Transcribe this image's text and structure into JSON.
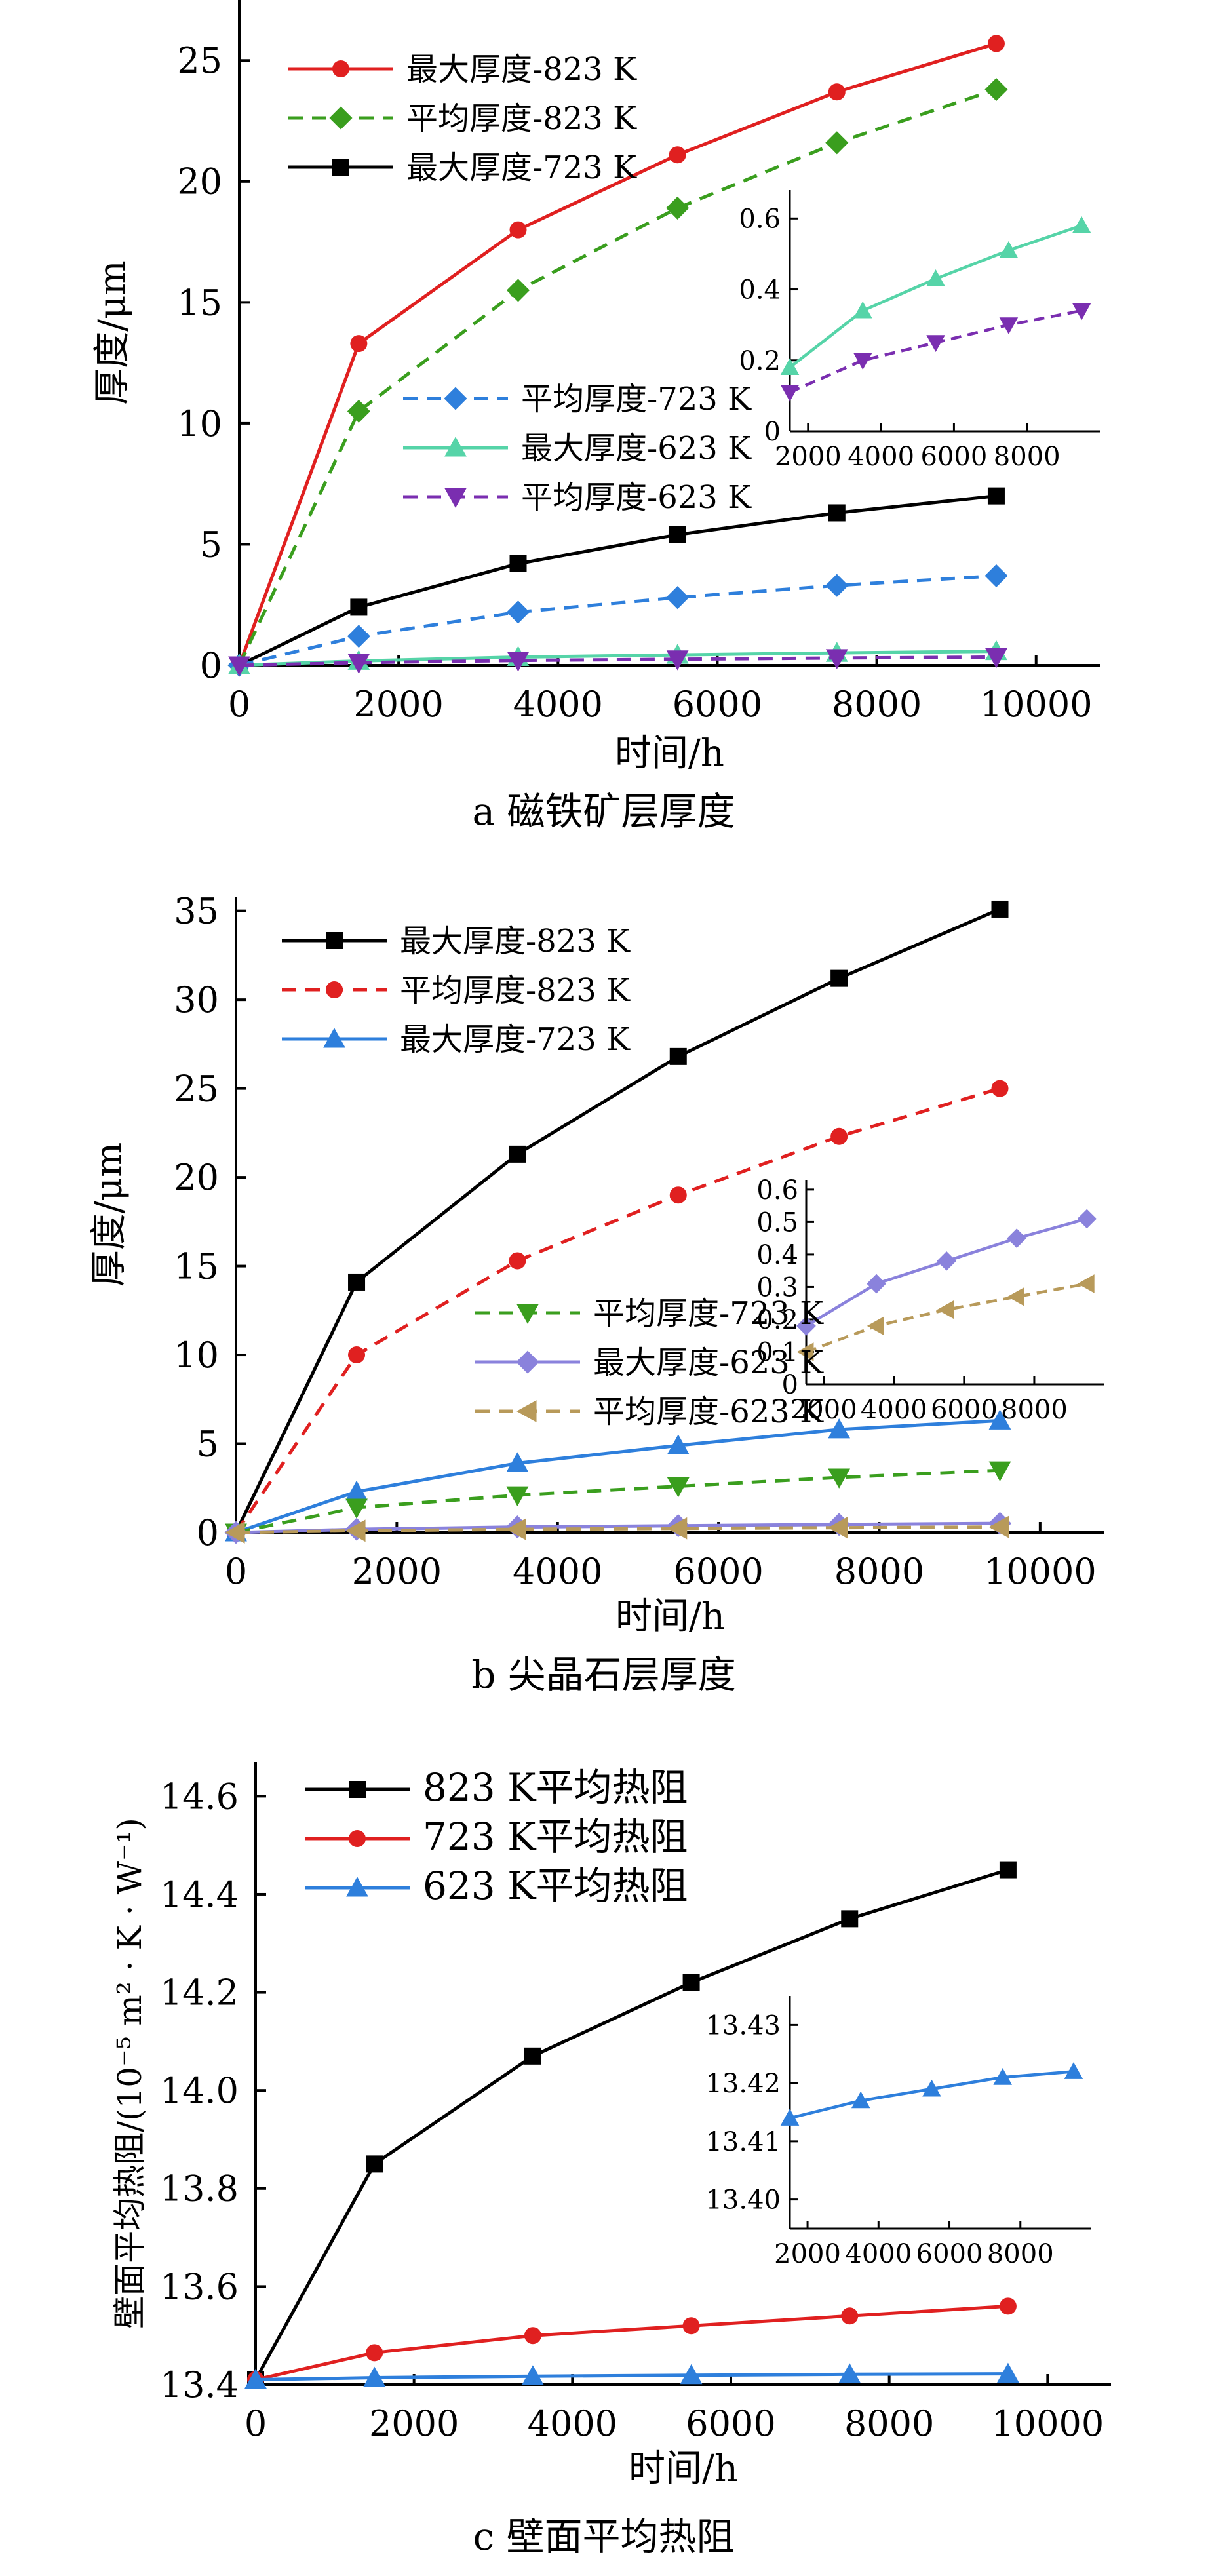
{
  "chart_data": [
    {
      "type": "line",
      "caption": "a  磁铁矿层厚度",
      "xlabel": "时间/h",
      "ylabel": "厚度/μm",
      "xlim": [
        0,
        10800
      ],
      "ylim": [
        0,
        27.5
      ],
      "xticks": [
        0,
        2000,
        4000,
        6000,
        8000,
        10000
      ],
      "yticks": [
        0,
        5,
        10,
        15,
        20,
        25
      ],
      "series": [
        {
          "name": "最大厚度-823 K",
          "color": "#e02020",
          "marker": "circle",
          "dash": "solid",
          "x": [
            0,
            1500,
            3500,
            5500,
            7500,
            9500
          ],
          "y": [
            0,
            13.3,
            18.0,
            21.1,
            23.7,
            25.7
          ]
        },
        {
          "name": "平均厚度-823 K",
          "color": "#3a9e1e",
          "marker": "diamond",
          "dash": "dashed",
          "x": [
            0,
            1500,
            3500,
            5500,
            7500,
            9500
          ],
          "y": [
            0,
            10.5,
            15.5,
            18.9,
            21.6,
            23.8
          ]
        },
        {
          "name": "最大厚度-723 K",
          "color": "#000000",
          "marker": "square",
          "dash": "solid",
          "x": [
            0,
            1500,
            3500,
            5500,
            7500,
            9500
          ],
          "y": [
            0,
            2.4,
            4.2,
            5.4,
            6.3,
            7.0
          ]
        },
        {
          "name": "平均厚度-723 K",
          "color": "#2e7fdc",
          "marker": "diamond",
          "dash": "dashed",
          "x": [
            0,
            1500,
            3500,
            5500,
            7500,
            9500
          ],
          "y": [
            0,
            1.2,
            2.2,
            2.8,
            3.3,
            3.7
          ]
        },
        {
          "name": "最大厚度-623 K",
          "color": "#56d4a8",
          "marker": "triangle-up",
          "dash": "solid",
          "x": [
            0,
            1500,
            3500,
            5500,
            7500,
            9500
          ],
          "y": [
            0,
            0.18,
            0.34,
            0.43,
            0.51,
            0.58
          ]
        },
        {
          "name": "平均厚度-623 K",
          "color": "#7a2eb0",
          "marker": "triangle-down",
          "dash": "dashed",
          "x": [
            0,
            1500,
            3500,
            5500,
            7500,
            9500
          ],
          "y": [
            0,
            0.11,
            0.2,
            0.25,
            0.3,
            0.34
          ]
        }
      ],
      "inset": {
        "xlim": [
          1500,
          10000
        ],
        "ylim": [
          0,
          0.68
        ],
        "xticks": [
          2000,
          4000,
          6000,
          8000
        ],
        "yticks": [
          0,
          0.2,
          0.4,
          0.6
        ],
        "ytick_labels": [
          "0",
          "0.2",
          "0.4",
          "0.6"
        ],
        "series": [
          {
            "name": "最大厚度-623 K",
            "color": "#56d4a8",
            "marker": "triangle-up",
            "dash": "solid",
            "x": [
              1500,
              3500,
              5500,
              7500,
              9500
            ],
            "y": [
              0.18,
              0.34,
              0.43,
              0.51,
              0.58
            ]
          },
          {
            "name": "平均厚度-623 K",
            "color": "#7a2eb0",
            "marker": "triangle-down",
            "dash": "dashed",
            "x": [
              1500,
              3500,
              5500,
              7500,
              9500
            ],
            "y": [
              0.11,
              0.2,
              0.25,
              0.3,
              0.34
            ]
          }
        ]
      }
    },
    {
      "type": "line",
      "caption": "b  尖晶石层厚度",
      "xlabel": "时间/h",
      "ylabel": "厚度/μm",
      "xlim": [
        0,
        10800
      ],
      "ylim": [
        0,
        35.8
      ],
      "xticks": [
        0,
        2000,
        4000,
        6000,
        8000,
        10000
      ],
      "yticks": [
        0,
        5,
        10,
        15,
        20,
        25,
        30,
        35
      ],
      "series": [
        {
          "name": "最大厚度-823 K",
          "color": "#000000",
          "marker": "square",
          "dash": "solid",
          "x": [
            0,
            1500,
            3500,
            5500,
            7500,
            9500
          ],
          "y": [
            0,
            14.1,
            21.3,
            26.8,
            31.2,
            35.1
          ]
        },
        {
          "name": "平均厚度-823 K",
          "color": "#e02020",
          "marker": "circle",
          "dash": "dashed",
          "x": [
            0,
            1500,
            3500,
            5500,
            7500,
            9500
          ],
          "y": [
            0,
            10.0,
            15.3,
            19.0,
            22.3,
            25.0
          ]
        },
        {
          "name": "最大厚度-723 K",
          "color": "#2e7fdc",
          "marker": "triangle-up",
          "dash": "solid",
          "x": [
            0,
            1500,
            3500,
            5500,
            7500,
            9500
          ],
          "y": [
            0,
            2.3,
            3.9,
            4.9,
            5.8,
            6.3
          ]
        },
        {
          "name": "平均厚度-723 K",
          "color": "#3a9e1e",
          "marker": "triangle-down",
          "dash": "dashed",
          "x": [
            0,
            1500,
            3500,
            5500,
            7500,
            9500
          ],
          "y": [
            0,
            1.4,
            2.1,
            2.6,
            3.1,
            3.5
          ]
        },
        {
          "name": "最大厚度-623 K",
          "color": "#8a82dc",
          "marker": "diamond",
          "dash": "solid",
          "x": [
            0,
            1500,
            3500,
            5500,
            7500,
            9500
          ],
          "y": [
            0,
            0.18,
            0.31,
            0.38,
            0.45,
            0.51
          ]
        },
        {
          "name": "平均厚度-623 K",
          "color": "#b89a5a",
          "marker": "triangle-left",
          "dash": "dashed",
          "x": [
            0,
            1500,
            3500,
            5500,
            7500,
            9500
          ],
          "y": [
            0,
            0.1,
            0.18,
            0.23,
            0.27,
            0.31
          ]
        }
      ],
      "inset": {
        "xlim": [
          1500,
          10000
        ],
        "ylim": [
          0,
          0.63
        ],
        "xticks": [
          2000,
          4000,
          6000,
          8000
        ],
        "yticks": [
          0,
          0.1,
          0.2,
          0.3,
          0.4,
          0.5,
          0.6
        ],
        "ytick_labels": [
          "0",
          "0.1",
          "0.2",
          "0.3",
          "0.4",
          "0.5",
          "0.6"
        ],
        "series": [
          {
            "name": "最大厚度-623 K",
            "color": "#8a82dc",
            "marker": "diamond",
            "dash": "solid",
            "x": [
              1500,
              3500,
              5500,
              7500,
              9500
            ],
            "y": [
              0.18,
              0.31,
              0.38,
              0.45,
              0.51
            ]
          },
          {
            "name": "平均厚度-623 K",
            "color": "#b89a5a",
            "marker": "triangle-left",
            "dash": "dashed",
            "x": [
              1500,
              3500,
              5500,
              7500,
              9500
            ],
            "y": [
              0.1,
              0.18,
              0.23,
              0.27,
              0.31
            ]
          }
        ]
      }
    },
    {
      "type": "line",
      "caption": "c  壁面平均热阻",
      "xlabel": "时间/h",
      "ylabel": "壁面平均热阻/(10⁻⁵ m² · K · W⁻¹)",
      "xlim": [
        0,
        10800
      ],
      "ylim": [
        13.4,
        14.67
      ],
      "xticks": [
        0,
        2000,
        4000,
        6000,
        8000,
        10000
      ],
      "yticks": [
        13.4,
        13.6,
        13.8,
        14.0,
        14.2,
        14.4,
        14.6
      ],
      "ytick_labels": [
        "13.4",
        "13.6",
        "13.8",
        "14.0",
        "14.2",
        "14.4",
        "14.6"
      ],
      "series": [
        {
          "name": "823 K平均热阻",
          "color": "#000000",
          "marker": "square",
          "dash": "solid",
          "x": [
            0,
            1500,
            3500,
            5500,
            7500,
            9500
          ],
          "y": [
            13.41,
            13.85,
            14.07,
            14.22,
            14.35,
            14.45
          ]
        },
        {
          "name": "723 K平均热阻",
          "color": "#e02020",
          "marker": "circle",
          "dash": "solid",
          "x": [
            0,
            1500,
            3500,
            5500,
            7500,
            9500
          ],
          "y": [
            13.41,
            13.465,
            13.5,
            13.52,
            13.54,
            13.56
          ]
        },
        {
          "name": "623 K平均热阻",
          "color": "#2e7fdc",
          "marker": "triangle-up",
          "dash": "solid",
          "x": [
            0,
            1500,
            3500,
            5500,
            7500,
            9500
          ],
          "y": [
            13.41,
            13.414,
            13.417,
            13.419,
            13.421,
            13.422
          ]
        }
      ],
      "inset": {
        "xlim": [
          1500,
          10000
        ],
        "ylim": [
          13.395,
          13.435
        ],
        "xticks": [
          2000,
          4000,
          6000,
          8000
        ],
        "yticks": [
          13.4,
          13.41,
          13.42,
          13.43
        ],
        "ytick_labels": [
          "13.40",
          "13.41",
          "13.42",
          "13.43"
        ],
        "series": [
          {
            "name": "623 K平均热阻",
            "color": "#2e7fdc",
            "marker": "triangle-up",
            "dash": "solid",
            "x": [
              1500,
              3500,
              5500,
              7500,
              9500
            ],
            "y": [
              13.414,
              13.417,
              13.419,
              13.421,
              13.422
            ]
          }
        ]
      }
    }
  ]
}
